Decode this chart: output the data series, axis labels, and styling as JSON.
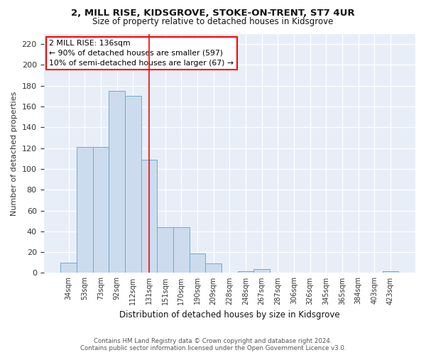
{
  "title1": "2, MILL RISE, KIDSGROVE, STOKE-ON-TRENT, ST7 4UR",
  "title2": "Size of property relative to detached houses in Kidsgrove",
  "xlabel": "Distribution of detached houses by size in Kidsgrove",
  "ylabel": "Number of detached properties",
  "categories": [
    "34sqm",
    "53sqm",
    "73sqm",
    "92sqm",
    "112sqm",
    "131sqm",
    "151sqm",
    "170sqm",
    "190sqm",
    "209sqm",
    "228sqm",
    "248sqm",
    "267sqm",
    "287sqm",
    "306sqm",
    "326sqm",
    "345sqm",
    "365sqm",
    "384sqm",
    "403sqm",
    "423sqm"
  ],
  "values": [
    10,
    121,
    121,
    175,
    170,
    109,
    44,
    44,
    19,
    9,
    0,
    2,
    4,
    0,
    0,
    0,
    0,
    0,
    0,
    0,
    2
  ],
  "bar_color": "#ccdcee",
  "bar_edge_color": "#6aaad4",
  "annotation_text": "2 MILL RISE: 136sqm\n← 90% of detached houses are smaller (597)\n10% of semi-detached houses are larger (67) →",
  "footer1": "Contains HM Land Registry data © Crown copyright and database right 2024.",
  "footer2": "Contains public sector information licensed under the Open Government Licence v3.0.",
  "ylim": [
    0,
    230
  ],
  "bg_color": "#ffffff",
  "plot_bg_color": "#e8eef8",
  "red_line_index": 5
}
